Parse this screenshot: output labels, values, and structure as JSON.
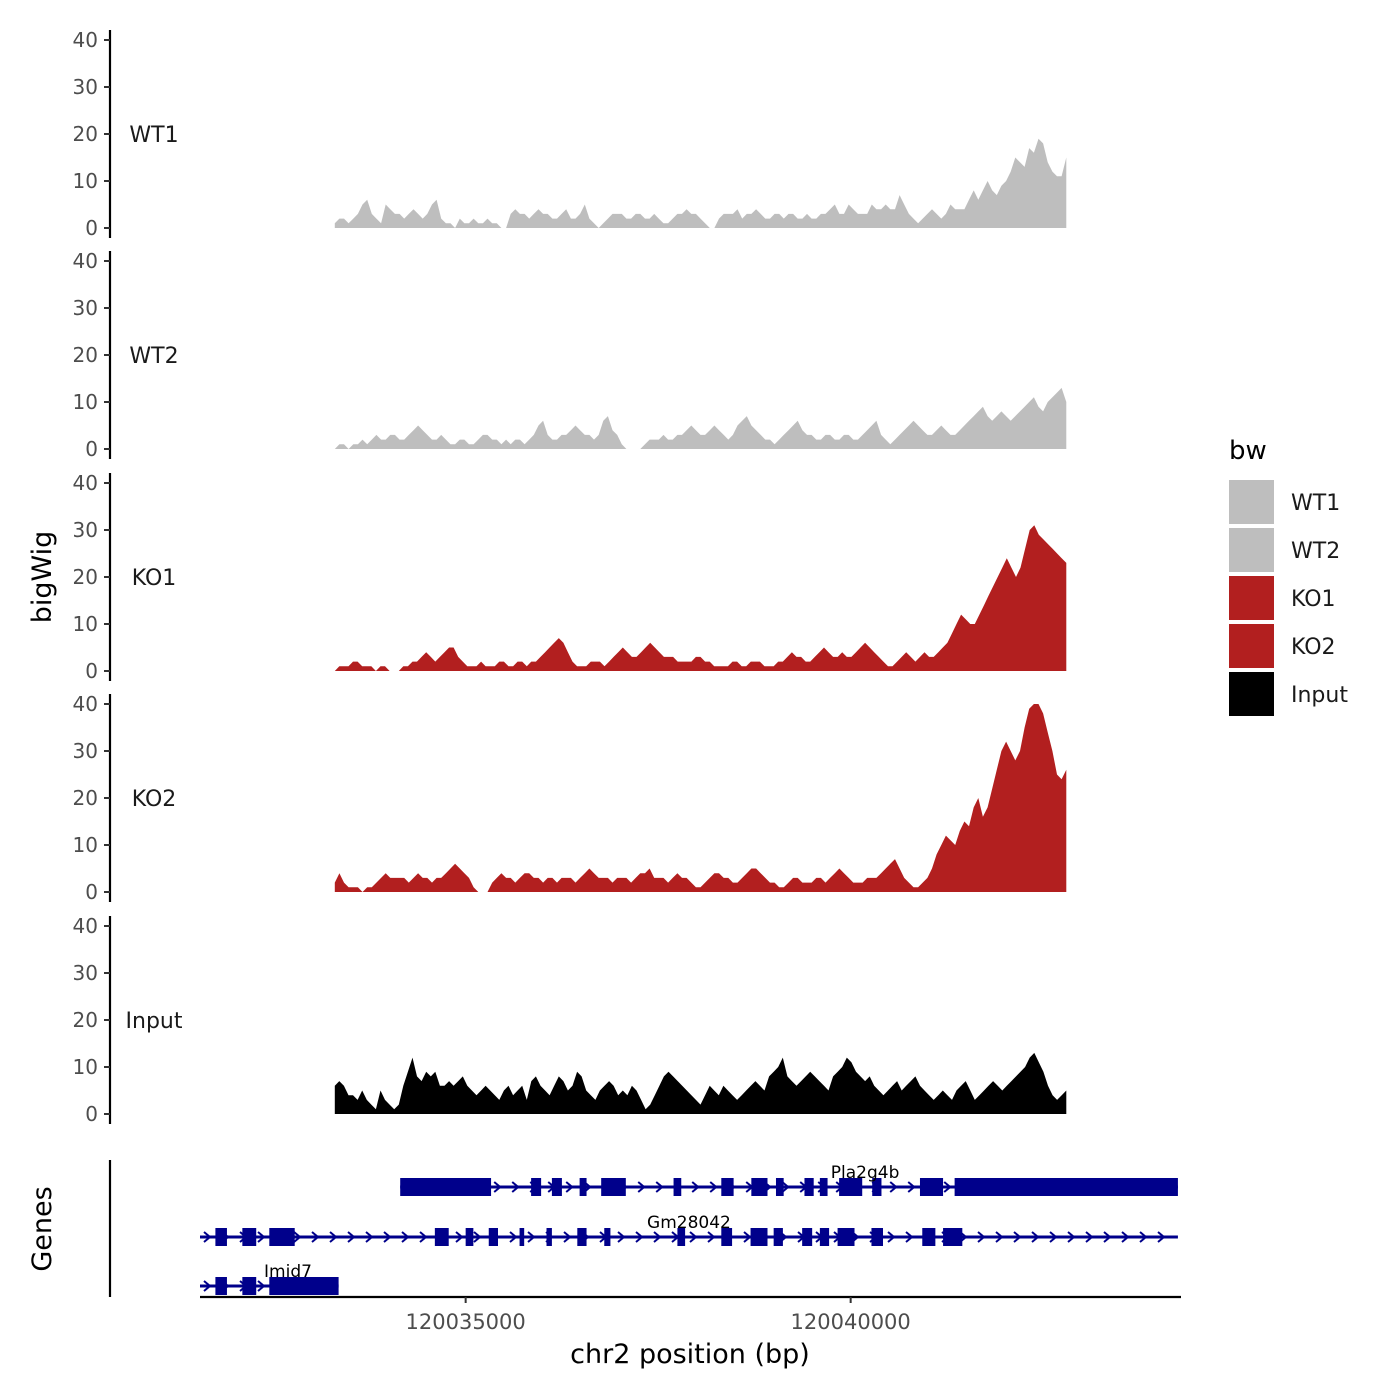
{
  "chart_data": {
    "type": "area",
    "title": "",
    "ylabel": "bigWig",
    "genes_label": "Genes",
    "xlabel": "chr2 position (bp)",
    "xlim": [
      120031550,
      120044290
    ],
    "x_ticks": [
      120035000,
      120040000
    ],
    "x_tick_labels": [
      "120035000",
      "120040000"
    ],
    "ylim": [
      0,
      40
    ],
    "y_ticks": [
      0,
      10,
      20,
      30,
      40
    ],
    "y_tick_labels": [
      "0",
      "10",
      "20",
      "30",
      "40"
    ],
    "legend": {
      "title": "bw",
      "position": "right",
      "entries": [
        {
          "label": "WT1",
          "color": "#bebebe"
        },
        {
          "label": "WT2",
          "color": "#bebebe"
        },
        {
          "label": "KO1",
          "color": "#b21f1f"
        },
        {
          "label": "KO2",
          "color": "#b21f1f"
        },
        {
          "label": "Input",
          "color": "#000000"
        }
      ]
    },
    "series": [
      {
        "name": "WT1",
        "color": "#bebebe",
        "x_start": 120033300,
        "x_end": 120042800,
        "values": [
          1,
          2,
          2,
          1,
          2,
          3,
          5,
          6,
          3,
          2,
          1,
          5,
          4,
          3,
          3,
          2,
          3,
          4,
          3,
          2,
          3,
          5,
          6,
          2,
          1,
          1,
          0,
          2,
          1,
          1,
          2,
          1,
          1,
          2,
          1,
          1,
          0,
          0,
          3,
          4,
          3,
          3,
          2,
          3,
          4,
          3,
          3,
          2,
          2,
          3,
          4,
          2,
          2,
          3,
          5,
          2,
          1,
          0,
          1,
          2,
          3,
          3,
          3,
          2,
          2,
          3,
          3,
          2,
          2,
          3,
          2,
          1,
          1,
          2,
          3,
          3,
          4,
          3,
          3,
          2,
          1,
          0,
          0,
          2,
          3,
          3,
          3,
          4,
          2,
          3,
          3,
          4,
          3,
          2,
          2,
          3,
          3,
          2,
          3,
          3,
          2,
          2,
          3,
          2,
          2,
          3,
          3,
          4,
          5,
          3,
          3,
          5,
          4,
          3,
          3,
          3,
          5,
          4,
          4,
          5,
          4,
          4,
          7,
          5,
          3,
          2,
          1,
          2,
          3,
          4,
          3,
          2,
          3,
          5,
          4,
          4,
          4,
          6,
          8,
          6,
          8,
          10,
          8,
          7,
          9,
          10,
          12,
          15,
          14,
          13,
          17,
          16,
          19,
          18,
          14,
          12,
          11,
          11,
          15
        ]
      },
      {
        "name": "WT2",
        "color": "#bebebe",
        "x_start": 120033300,
        "x_end": 120042800,
        "values": [
          0,
          1,
          1,
          0,
          1,
          1,
          2,
          1,
          2,
          3,
          2,
          2,
          3,
          3,
          2,
          2,
          3,
          4,
          5,
          4,
          3,
          2,
          2,
          3,
          2,
          1,
          1,
          2,
          2,
          1,
          1,
          2,
          3,
          3,
          2,
          2,
          1,
          2,
          1,
          2,
          2,
          1,
          2,
          3,
          5,
          6,
          3,
          2,
          2,
          3,
          3,
          4,
          5,
          4,
          3,
          3,
          2,
          3,
          6,
          7,
          4,
          3,
          1,
          0,
          0,
          0,
          0,
          1,
          2,
          2,
          2,
          3,
          2,
          2,
          3,
          3,
          4,
          5,
          4,
          3,
          3,
          4,
          5,
          4,
          3,
          2,
          3,
          5,
          6,
          7,
          5,
          4,
          3,
          2,
          2,
          1,
          2,
          3,
          4,
          5,
          6,
          4,
          3,
          3,
          2,
          2,
          3,
          3,
          2,
          2,
          3,
          3,
          2,
          2,
          3,
          4,
          5,
          6,
          3,
          2,
          1,
          2,
          3,
          4,
          5,
          6,
          5,
          4,
          3,
          3,
          4,
          5,
          4,
          3,
          3,
          4,
          5,
          6,
          7,
          8,
          9,
          7,
          6,
          7,
          8,
          7,
          6,
          7,
          8,
          9,
          10,
          11,
          9,
          8,
          10,
          11,
          12,
          13,
          10
        ]
      },
      {
        "name": "KO1",
        "color": "#b21f1f",
        "x_start": 120033300,
        "x_end": 120042800,
        "values": [
          0,
          1,
          1,
          1,
          2,
          2,
          1,
          1,
          1,
          0,
          1,
          1,
          0,
          0,
          0,
          1,
          1,
          2,
          2,
          3,
          4,
          3,
          2,
          3,
          4,
          5,
          5,
          3,
          2,
          1,
          1,
          1,
          2,
          1,
          1,
          1,
          2,
          2,
          1,
          1,
          2,
          2,
          1,
          2,
          2,
          3,
          4,
          5,
          6,
          7,
          6,
          4,
          2,
          1,
          1,
          1,
          2,
          2,
          2,
          1,
          2,
          3,
          4,
          5,
          4,
          3,
          3,
          4,
          5,
          6,
          5,
          4,
          3,
          3,
          3,
          2,
          2,
          2,
          2,
          3,
          3,
          2,
          2,
          1,
          1,
          1,
          1,
          2,
          2,
          1,
          1,
          2,
          2,
          2,
          1,
          1,
          1,
          2,
          2,
          3,
          4,
          3,
          3,
          2,
          2,
          3,
          4,
          5,
          4,
          3,
          3,
          4,
          3,
          3,
          4,
          5,
          6,
          5,
          4,
          3,
          2,
          1,
          1,
          2,
          3,
          4,
          3,
          2,
          3,
          4,
          3,
          3,
          4,
          5,
          6,
          8,
          10,
          12,
          11,
          10,
          10,
          12,
          14,
          16,
          18,
          20,
          22,
          24,
          22,
          20,
          22,
          26,
          30,
          31,
          29,
          28,
          27,
          26,
          25,
          24,
          23
        ]
      },
      {
        "name": "KO2",
        "color": "#b21f1f",
        "x_start": 120033300,
        "x_end": 120042800,
        "values": [
          2,
          4,
          2,
          1,
          1,
          1,
          0,
          1,
          1,
          2,
          3,
          4,
          3,
          3,
          3,
          3,
          2,
          3,
          4,
          3,
          3,
          2,
          3,
          3,
          4,
          5,
          6,
          5,
          4,
          3,
          1,
          0,
          0,
          0,
          2,
          3,
          4,
          3,
          3,
          2,
          3,
          4,
          4,
          3,
          3,
          2,
          3,
          3,
          2,
          3,
          3,
          3,
          2,
          3,
          4,
          5,
          4,
          3,
          3,
          3,
          2,
          3,
          3,
          3,
          2,
          3,
          4,
          4,
          5,
          3,
          3,
          3,
          2,
          3,
          4,
          3,
          3,
          2,
          1,
          1,
          2,
          3,
          4,
          4,
          3,
          3,
          2,
          2,
          3,
          4,
          5,
          5,
          4,
          3,
          2,
          2,
          1,
          1,
          2,
          3,
          3,
          2,
          2,
          2,
          3,
          3,
          2,
          3,
          4,
          5,
          4,
          3,
          2,
          2,
          2,
          3,
          3,
          3,
          4,
          5,
          6,
          7,
          5,
          3,
          2,
          1,
          1,
          2,
          3,
          5,
          8,
          10,
          12,
          11,
          10,
          13,
          15,
          14,
          18,
          20,
          16,
          18,
          22,
          26,
          30,
          32,
          30,
          28,
          30,
          35,
          39,
          40,
          40,
          38,
          34,
          30,
          25,
          24,
          26
        ]
      },
      {
        "name": "Input",
        "color": "#000000",
        "x_start": 120033300,
        "x_end": 120042800,
        "values": [
          6,
          7,
          6,
          4,
          4,
          3,
          5,
          3,
          2,
          1,
          5,
          3,
          2,
          1,
          2,
          6,
          9,
          12,
          8,
          7,
          9,
          8,
          9,
          6,
          6,
          7,
          6,
          7,
          8,
          6,
          5,
          4,
          5,
          6,
          5,
          4,
          3,
          5,
          6,
          4,
          5,
          6,
          3,
          7,
          8,
          6,
          5,
          4,
          6,
          8,
          7,
          5,
          6,
          9,
          8,
          5,
          4,
          3,
          5,
          6,
          7,
          6,
          4,
          5,
          4,
          6,
          5,
          3,
          1,
          2,
          4,
          6,
          8,
          9,
          8,
          7,
          6,
          5,
          4,
          3,
          2,
          4,
          6,
          5,
          4,
          6,
          5,
          4,
          3,
          4,
          5,
          6,
          7,
          6,
          5,
          8,
          9,
          10,
          12,
          8,
          7,
          6,
          7,
          8,
          9,
          8,
          7,
          6,
          5,
          8,
          9,
          10,
          12,
          11,
          9,
          8,
          7,
          8,
          6,
          5,
          4,
          5,
          6,
          7,
          5,
          6,
          7,
          8,
          6,
          5,
          4,
          3,
          4,
          5,
          4,
          3,
          5,
          6,
          7,
          5,
          3,
          4,
          5,
          6,
          7,
          6,
          5,
          6,
          7,
          8,
          9,
          10,
          12,
          13,
          11,
          9,
          6,
          4,
          3,
          4,
          5
        ]
      }
    ],
    "genes": [
      {
        "name": "Pla2g4b",
        "row": 1,
        "start": 120034150,
        "end": 120044250,
        "exons": [
          [
            120034150,
            120035330
          ],
          [
            120035850,
            120035980
          ],
          [
            120036120,
            120036250
          ],
          [
            120036480,
            120036570
          ],
          [
            120036760,
            120037080
          ],
          [
            120037700,
            120037800
          ],
          [
            120038320,
            120038480
          ],
          [
            120038710,
            120038920
          ],
          [
            120039030,
            120039130
          ],
          [
            120039400,
            120039520
          ],
          [
            120039600,
            120039700
          ],
          [
            120039850,
            120040150
          ],
          [
            120040280,
            120040400
          ],
          [
            120040900,
            120041200
          ],
          [
            120041350,
            120044250
          ]
        ]
      },
      {
        "name": "Gm28042",
        "row": 2,
        "start": 120031550,
        "end": 120044250,
        "exons": [
          [
            120031750,
            120031900
          ],
          [
            120032100,
            120032280
          ],
          [
            120032450,
            120032780
          ],
          [
            120034600,
            120034780
          ],
          [
            120035000,
            120035100
          ],
          [
            120035300,
            120035420
          ],
          [
            120035700,
            120035760
          ],
          [
            120036050,
            120036120
          ],
          [
            120036450,
            120036570
          ],
          [
            120036800,
            120036880
          ],
          [
            120037750,
            120037850
          ],
          [
            120038320,
            120038460
          ],
          [
            120038700,
            120038920
          ],
          [
            120039000,
            120039120
          ],
          [
            120039370,
            120039500
          ],
          [
            120039600,
            120039720
          ],
          [
            120039830,
            120040050
          ],
          [
            120040270,
            120040420
          ],
          [
            120040930,
            120041100
          ],
          [
            120041200,
            120041450
          ]
        ]
      },
      {
        "name": "Imid7",
        "row": 3,
        "start": 120031550,
        "end": 120033350,
        "exons": [
          [
            120031750,
            120031900
          ],
          [
            120032100,
            120032280
          ],
          [
            120032450,
            120033350
          ]
        ]
      }
    ]
  }
}
